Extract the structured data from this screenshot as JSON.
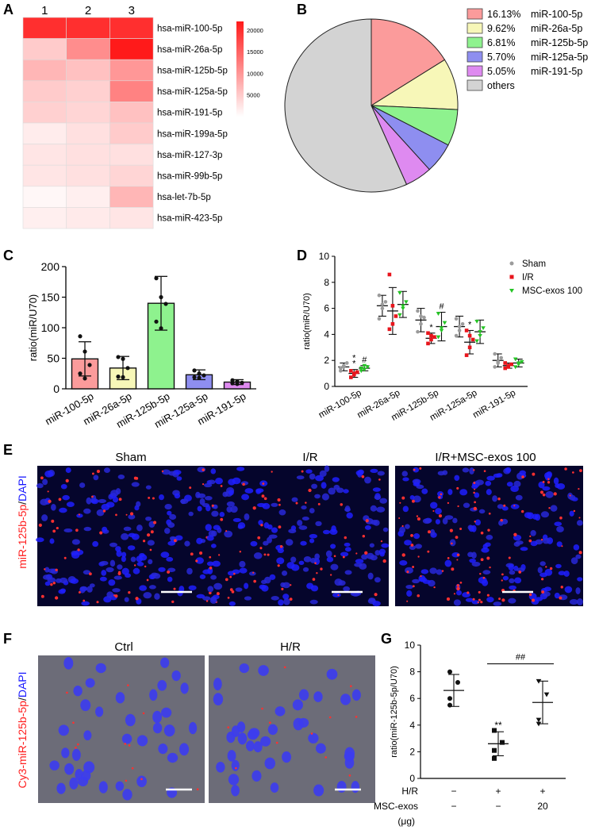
{
  "panels": {
    "A": "A",
    "B": "B",
    "C": "C",
    "D": "D",
    "E": "E",
    "F": "F",
    "G": "G"
  },
  "colors": {
    "heat_max": "#ff1a1a",
    "pie": [
      "#fb9b9b",
      "#f7f7b8",
      "#8ef28e",
      "#8e8ef0",
      "#de8af0",
      "#d3d3d3"
    ],
    "sham": "#9b9b9b",
    "ir": "#e8151c",
    "msc": "#24c424",
    "dapi": "#1a1aff",
    "mirna": "#ff2020"
  },
  "panel_A": {
    "columns": [
      "1",
      "2",
      "3"
    ],
    "legend_ticks": [
      "20000",
      "15000",
      "10000",
      "5000"
    ]
  },
  "panel_B": {
    "legend": [
      {
        "pct": "16.13%",
        "label": "miR-100-5p"
      },
      {
        "pct": "9.62%",
        "label": "miR-26a-5p"
      },
      {
        "pct": "6.81%",
        "label": "miR-125b-5p"
      },
      {
        "pct": "5.70%",
        "label": "miR-125a-5p"
      },
      {
        "pct": "5.05%",
        "label": "miR-191-5p"
      },
      {
        "pct": "",
        "label": "others"
      }
    ]
  },
  "panel_E": {
    "titles": [
      "Sham",
      "I/R",
      "I/R+MSC-exos 100"
    ],
    "ylabel_red": "miR-125b-5p",
    "ylabel_sep": "/",
    "ylabel_blue": "DAPI"
  },
  "panel_F": {
    "titles": [
      "Ctrl",
      "H/R"
    ],
    "ylabel_red": "Cy3-miR-125b-5p",
    "ylabel_sep": "/",
    "ylabel_blue": "DAPI"
  },
  "chart_data": [
    {
      "id": "A",
      "type": "heatmap",
      "rows": [
        "hsa-miR-100-5p",
        "hsa-miR-26a-5p",
        "hsa-miR-125b-5p",
        "hsa-miR-125a-5p",
        "hsa-miR-191-5p",
        "hsa-miR-199a-5p",
        "hsa-miR-127-3p",
        "hsa-miR-99b-5p",
        "hsa-let-7b-5p",
        "hsa-miR-423-5p"
      ],
      "columns": [
        "1",
        "2",
        "3"
      ],
      "values": [
        [
          20000,
          20000,
          20000
        ],
        [
          5000,
          11000,
          22000
        ],
        [
          7000,
          6000,
          10000
        ],
        [
          5000,
          4500,
          12000
        ],
        [
          4500,
          4000,
          6000
        ],
        [
          1800,
          3000,
          5000
        ],
        [
          2500,
          3000,
          3000
        ],
        [
          2500,
          3000,
          4000
        ],
        [
          800,
          1500,
          7000
        ],
        [
          1500,
          2000,
          2500
        ]
      ],
      "colorbar_range": [
        0,
        22000
      ],
      "colorbar_ticks": [
        5000,
        10000,
        15000,
        20000
      ]
    },
    {
      "id": "B",
      "type": "pie",
      "labels": [
        "miR-100-5p",
        "miR-26a-5p",
        "miR-125b-5p",
        "miR-125a-5p",
        "miR-191-5p",
        "others"
      ],
      "values": [
        16.13,
        9.62,
        6.81,
        5.7,
        5.05,
        56.69
      ]
    },
    {
      "id": "C",
      "type": "bar",
      "categories": [
        "miR-100-5p",
        "miR-26a-5p",
        "miR-125b-5p",
        "miR-125a-5p",
        "miR-191-5p"
      ],
      "values": [
        49,
        34,
        140,
        23,
        11
      ],
      "errors": [
        28,
        19,
        44,
        8,
        4
      ],
      "points": [
        [
          86,
          61,
          39,
          25,
          17
        ],
        [
          52,
          49,
          34,
          20,
          19
        ],
        [
          181,
          150,
          139,
          110,
          99
        ],
        [
          30,
          25,
          22,
          19,
          18
        ],
        [
          14,
          12,
          10,
          9,
          8
        ]
      ],
      "ylabel": "ratio(miR/U70)",
      "ylim": [
        0,
        200
      ],
      "yticks": [
        0,
        50,
        100,
        150,
        200
      ]
    },
    {
      "id": "D",
      "type": "scatter",
      "categories": [
        "miR-100-5p",
        "miR-26a-5p",
        "miR-125b-5p",
        "miR-125a-5p",
        "miR-191-5p"
      ],
      "series": [
        {
          "name": "Sham",
          "means": [
            1.5,
            6.2,
            5.1,
            4.6,
            2.0
          ],
          "sd": [
            0.3,
            0.8,
            0.9,
            0.8,
            0.5
          ],
          "points": [
            [
              1.2,
              1.5,
              1.8,
              1.4,
              1.6
            ],
            [
              5.2,
              6.0,
              6.5,
              7.0,
              6.3
            ],
            [
              4.2,
              4.8,
              5.3,
              5.8,
              5.4
            ],
            [
              3.9,
              4.3,
              4.8,
              5.2,
              4.6
            ],
            [
              1.5,
              1.8,
              2.2,
              2.5,
              1.9
            ]
          ]
        },
        {
          "name": "I/R",
          "means": [
            1.0,
            5.8,
            3.7,
            3.4,
            1.6
          ],
          "sd": [
            0.3,
            1.8,
            0.4,
            0.9,
            0.2
          ],
          "points": [
            [
              0.7,
              0.9,
              1.1,
              1.2,
              1.0
            ],
            [
              8.6,
              6.2,
              5.4,
              4.4,
              4.8
            ],
            [
              3.3,
              3.6,
              3.8,
              4.1,
              3.9
            ],
            [
              2.4,
              3.0,
              3.6,
              4.3,
              3.9
            ],
            [
              1.4,
              1.5,
              1.7,
              1.8,
              1.6
            ]
          ]
        },
        {
          "name": "MSC-exos 100",
          "means": [
            1.4,
            6.3,
            4.6,
            4.2,
            1.8
          ],
          "sd": [
            0.2,
            1.0,
            1.1,
            0.9,
            0.3
          ],
          "points": [
            [
              1.2,
              1.3,
              1.5,
              1.4,
              1.6
            ],
            [
              5.5,
              6.0,
              6.5,
              7.2,
              6.2
            ],
            [
              3.8,
              4.3,
              4.9,
              5.6,
              4.5
            ],
            [
              3.5,
              3.9,
              4.5,
              5.0,
              4.2
            ],
            [
              1.5,
              1.7,
              1.9,
              2.1,
              1.8
            ]
          ]
        }
      ],
      "annotations": [
        {
          "category": "miR-100-5p",
          "series": "I/R",
          "text": "*\n*"
        },
        {
          "category": "miR-100-5p",
          "series": "MSC-exos 100",
          "text": "#"
        },
        {
          "category": "miR-125b-5p",
          "series": "I/R",
          "text": "*"
        },
        {
          "category": "miR-125b-5p",
          "series": "MSC-exos 100",
          "text": "#"
        },
        {
          "category": "miR-125a-5p",
          "series": "I/R",
          "text": "*"
        }
      ],
      "ylabel": "ratio(miR/U70)",
      "ylim": [
        0,
        10
      ],
      "yticks": [
        0,
        2,
        4,
        6,
        8,
        10
      ],
      "legend_position": "top-right"
    },
    {
      "id": "G",
      "type": "scatter",
      "groups": [
        {
          "hr": "−",
          "msc": "−",
          "mean": 6.6,
          "sd": 1.2,
          "points": [
            8.0,
            7.2,
            6.0,
            5.5
          ]
        },
        {
          "hr": "+",
          "msc": "−",
          "mean": 2.6,
          "sd": 0.9,
          "points": [
            3.6,
            2.7,
            2.1,
            1.5
          ]
        },
        {
          "hr": "+",
          "msc": "20",
          "mean": 5.7,
          "sd": 1.6,
          "points": [
            7.3,
            6.3,
            4.4,
            4.1
          ]
        }
      ],
      "row_labels": [
        "H/R",
        "MSC-exos",
        "(μg)"
      ],
      "annotations": [
        {
          "group": 2,
          "text": "**"
        },
        {
          "bracket": [
            2,
            3
          ],
          "text": "##"
        }
      ],
      "ylabel": "ratio(miR-125b-5p/U70)",
      "ylim": [
        0,
        10
      ],
      "yticks": [
        0,
        2,
        4,
        6,
        8,
        10
      ]
    }
  ]
}
